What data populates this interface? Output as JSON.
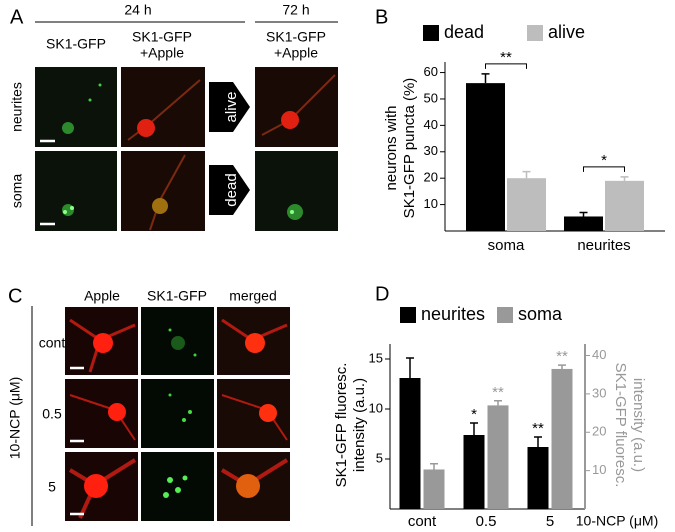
{
  "panel_a": {
    "label": "A",
    "time_labels": [
      "24 h",
      "72 h"
    ],
    "column_labels": [
      [
        "SK1-GFP"
      ],
      [
        "SK1-GFP",
        "+Apple"
      ],
      [
        "SK1-GFP",
        "+Apple"
      ]
    ],
    "row_labels": [
      "neurites",
      "soma"
    ],
    "outcomes": [
      "alive",
      "dead"
    ]
  },
  "panel_c": {
    "label": "C",
    "column_labels": [
      "Apple",
      "SK1-GFP",
      "merged"
    ],
    "row_labels": [
      "cont",
      "0.5",
      "5"
    ],
    "axis_label": "10-NCP (μM)"
  },
  "chart_data": [
    {
      "type": "bar",
      "panel_label": "B",
      "ylabel": [
        "neurons with",
        "SK1-GFP puncta (%)"
      ],
      "categories": [
        "soma",
        "neurites"
      ],
      "series": [
        {
          "name": "dead",
          "color": "#000000",
          "values": [
            56,
            5.5
          ],
          "errors": [
            3.5,
            1.5
          ]
        },
        {
          "name": "alive",
          "color": "#bdbdbd",
          "values": [
            20,
            19
          ],
          "errors": [
            2.5,
            1.5
          ]
        }
      ],
      "significance": [
        "**",
        "*"
      ],
      "ylim": [
        0,
        64
      ],
      "yticks": [
        10,
        20,
        30,
        40,
        50,
        60
      ]
    },
    {
      "type": "bar",
      "panel_label": "D",
      "ylabel": [
        "SK1-GFP fluoresc.",
        "intensity (a.u.)"
      ],
      "y2label": [
        "SK1-GFP fluoresc.",
        "intensity (a.u.)"
      ],
      "xlabel": "10-NCP (μM)",
      "categories": [
        "cont",
        "0.5",
        "5"
      ],
      "series": [
        {
          "name": "neurites",
          "color": "#000000",
          "values": [
            13.1,
            7.4,
            6.2
          ],
          "errors": [
            2,
            1.2,
            1
          ],
          "significance": [
            null,
            "*",
            "**"
          ]
        },
        {
          "name": "soma",
          "color": "#999999",
          "axis": "y2",
          "values": [
            10.3,
            27,
            36.5
          ],
          "errors": [
            1.5,
            1.2,
            1
          ],
          "significance": [
            null,
            "**",
            "**"
          ]
        }
      ],
      "ylim": [
        0,
        16.5
      ],
      "yticks": [
        5,
        10,
        15
      ],
      "y2lim": [
        0,
        43
      ],
      "y2ticks": [
        10,
        20,
        30,
        40
      ]
    }
  ]
}
